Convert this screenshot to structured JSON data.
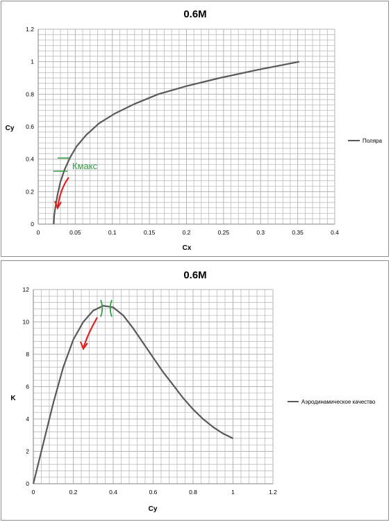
{
  "colors": {
    "curve": "#595959",
    "grid": "#b3b3b3",
    "axis": "#7f7f7f",
    "annotation_green": "#2ea043",
    "annotation_red": "#e02020"
  },
  "chart_data": [
    {
      "type": "line",
      "title": "0.6M",
      "xlabel": "Cx",
      "ylabel": "Cy",
      "xlim": [
        0,
        0.4
      ],
      "ylim": [
        0,
        1.2
      ],
      "x_ticks": [
        "0",
        "0.05",
        "0.1",
        "0.15",
        "0.2",
        "0.25",
        "0.3",
        "0.35",
        "0.4"
      ],
      "y_ticks": [
        "0",
        "0.2",
        "0.4",
        "0.6",
        "0.8",
        "1",
        "1.2"
      ],
      "grid": true,
      "legend_position": "right",
      "annotation": "Кмакс",
      "series": [
        {
          "name": "Поляра",
          "x": [
            0.021,
            0.0215,
            0.023,
            0.026,
            0.03,
            0.036,
            0.043,
            0.052,
            0.065,
            0.082,
            0.103,
            0.13,
            0.162,
            0.2,
            0.245,
            0.296,
            0.352
          ],
          "y": [
            0.0,
            0.05,
            0.1,
            0.18,
            0.26,
            0.34,
            0.41,
            0.48,
            0.55,
            0.62,
            0.68,
            0.74,
            0.8,
            0.85,
            0.9,
            0.95,
            1.0
          ]
        }
      ]
    },
    {
      "type": "line",
      "title": "0.6M",
      "xlabel": "Cy",
      "ylabel": "K",
      "xlim": [
        0,
        1.2
      ],
      "ylim": [
        0,
        12
      ],
      "x_ticks": [
        "0",
        "0.2",
        "0.4",
        "0.6",
        "0.8",
        "1",
        "1.2"
      ],
      "y_ticks": [
        "0",
        "2",
        "4",
        "6",
        "8",
        "10",
        "12"
      ],
      "grid": true,
      "legend_position": "right",
      "series": [
        {
          "name": "Аэродинамическое качество",
          "x": [
            0.0,
            0.05,
            0.1,
            0.15,
            0.2,
            0.25,
            0.3,
            0.35,
            0.4,
            0.45,
            0.5,
            0.55,
            0.6,
            0.65,
            0.7,
            0.75,
            0.8,
            0.85,
            0.9,
            0.95,
            1.0
          ],
          "y": [
            0.0,
            2.5,
            5.0,
            7.2,
            8.9,
            10.0,
            10.7,
            11.0,
            10.9,
            10.4,
            9.6,
            8.7,
            7.8,
            6.9,
            6.1,
            5.3,
            4.6,
            4.0,
            3.5,
            3.1,
            2.8
          ]
        }
      ]
    }
  ]
}
